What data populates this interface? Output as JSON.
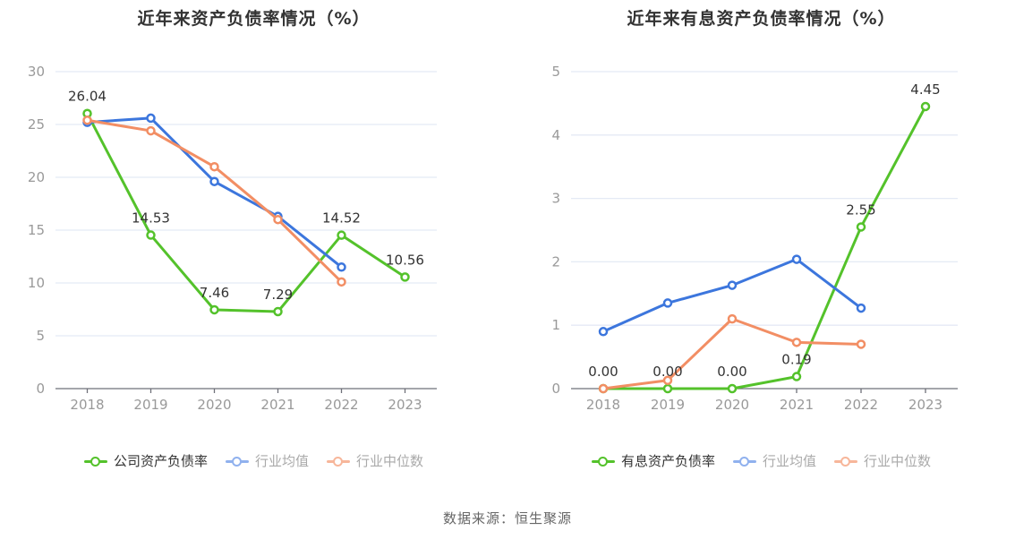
{
  "caption": "数据来源：恒生聚源",
  "style": {
    "grid_color": "#e4eaf5",
    "axis_color": "#6e7079",
    "tick_label_color": "#999999",
    "data_label_color": "#333333"
  },
  "chart_data": [
    {
      "type": "line",
      "title": "近年来资产负债率情况（%）",
      "categories": [
        "2018",
        "2019",
        "2020",
        "2021",
        "2022",
        "2023"
      ],
      "y_ticks": [
        0,
        5,
        10,
        15,
        20,
        25,
        30
      ],
      "ylim": [
        0,
        30
      ],
      "grid": true,
      "legend_position": "bottom",
      "series": [
        {
          "name": "公司资产负债率",
          "color": "#54c22b",
          "legend_color": "#54c22b",
          "legend_text_color": "#333333",
          "values": [
            26.04,
            14.53,
            7.46,
            7.29,
            14.52,
            10.56
          ],
          "labels": [
            "26.04",
            "14.53",
            "7.46",
            "7.29",
            "14.52",
            "10.56"
          ]
        },
        {
          "name": "行业均值",
          "color": "#3c76dd",
          "legend_color": "#90b1ee",
          "legend_text_color": "#aaaaaa",
          "values": [
            25.2,
            25.6,
            19.6,
            16.3,
            11.5,
            null
          ]
        },
        {
          "name": "行业中位数",
          "color": "#f28e64",
          "legend_color": "#f7b69a",
          "legend_text_color": "#aaaaaa",
          "values": [
            25.4,
            24.4,
            21.0,
            16.0,
            10.1,
            null
          ]
        }
      ]
    },
    {
      "type": "line",
      "title": "近年来有息资产负债率情况（%）",
      "categories": [
        "2018",
        "2019",
        "2020",
        "2021",
        "2022",
        "2023"
      ],
      "y_ticks": [
        0,
        1,
        2,
        3,
        4,
        5
      ],
      "ylim": [
        0,
        5
      ],
      "grid": true,
      "legend_position": "bottom",
      "series": [
        {
          "name": "有息资产负债率",
          "color": "#54c22b",
          "legend_color": "#54c22b",
          "legend_text_color": "#333333",
          "values": [
            0.0,
            0.0,
            0.0,
            0.19,
            2.55,
            4.45
          ],
          "labels": [
            "0.00",
            "0.00",
            "0.00",
            "0.19",
            "2.55",
            "4.45"
          ]
        },
        {
          "name": "行业均值",
          "color": "#3c76dd",
          "legend_color": "#90b1ee",
          "legend_text_color": "#aaaaaa",
          "values": [
            0.9,
            1.35,
            1.63,
            2.04,
            1.27,
            null
          ]
        },
        {
          "name": "行业中位数",
          "color": "#f28e64",
          "legend_color": "#f7b69a",
          "legend_text_color": "#aaaaaa",
          "values": [
            0.0,
            0.13,
            1.1,
            0.73,
            0.7,
            null
          ]
        }
      ]
    }
  ]
}
